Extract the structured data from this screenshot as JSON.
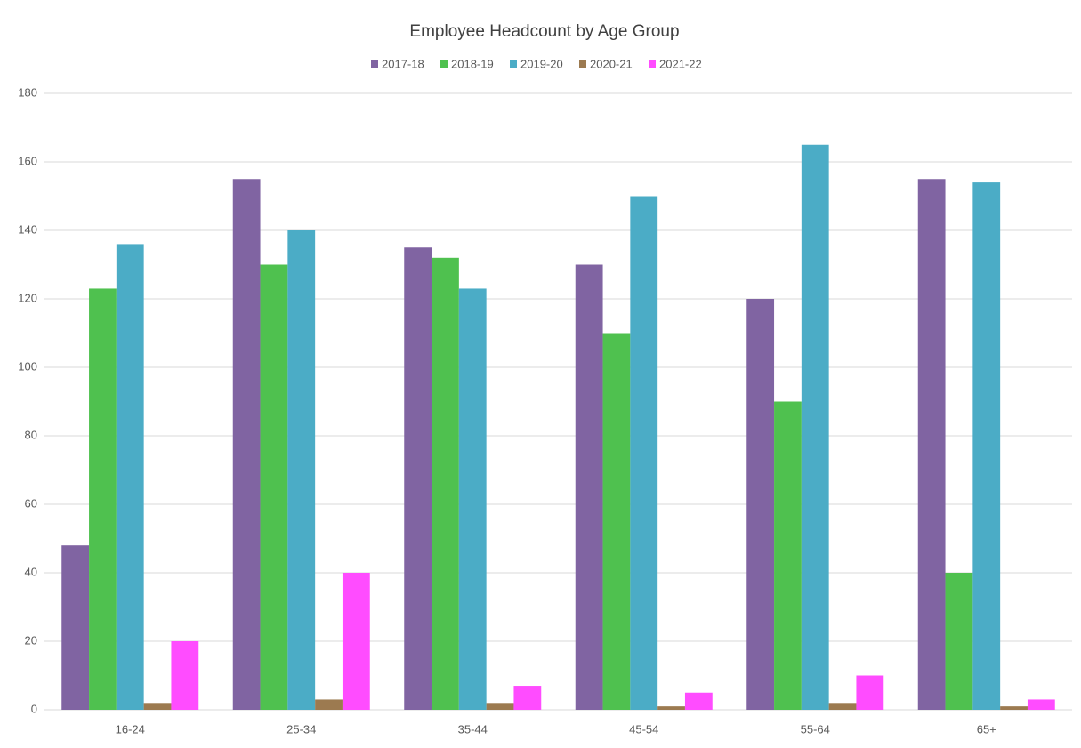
{
  "chart_data": {
    "type": "bar",
    "title": "Employee Headcount by Age Group",
    "categories": [
      "16-24",
      "25-34",
      "35-44",
      "45-54",
      "55-64",
      "65+"
    ],
    "series": [
      {
        "name": "2017-18",
        "color": "#8064a2",
        "values": [
          48,
          155,
          135,
          130,
          120,
          155
        ]
      },
      {
        "name": "2018-19",
        "color": "#4fc14f",
        "values": [
          123,
          130,
          132,
          110,
          90,
          40
        ]
      },
      {
        "name": "2019-20",
        "color": "#4bacc6",
        "values": [
          136,
          140,
          123,
          150,
          165,
          154
        ]
      },
      {
        "name": "2020-21",
        "color": "#9c7a50",
        "values": [
          2,
          3,
          2,
          1,
          2,
          1
        ]
      },
      {
        "name": "2021-22",
        "color": "#ff4cff",
        "values": [
          20,
          40,
          7,
          5,
          10,
          3
        ]
      }
    ],
    "ylim": [
      0,
      180
    ],
    "yticks": [
      0,
      20,
      40,
      60,
      80,
      100,
      120,
      140,
      160,
      180
    ],
    "grid": true,
    "legend": "top"
  }
}
